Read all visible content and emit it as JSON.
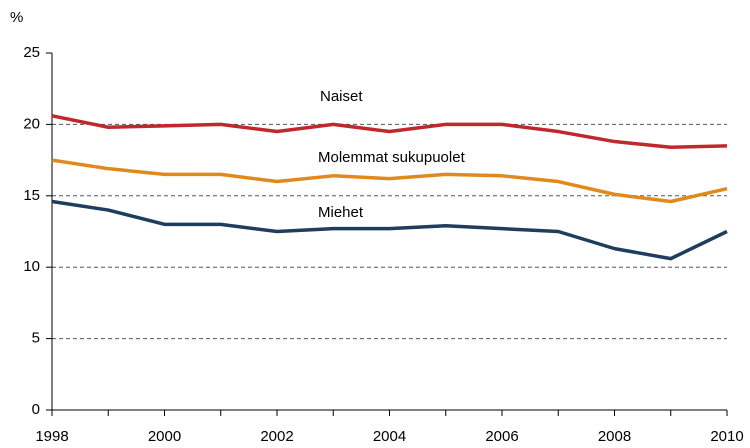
{
  "chart_data": {
    "type": "line",
    "y_label": "%",
    "x": [
      1998,
      1999,
      2000,
      2001,
      2002,
      2003,
      2004,
      2005,
      2006,
      2007,
      2008,
      2009,
      2010
    ],
    "series": [
      {
        "name": "Naiset",
        "color": "#c0282d",
        "values": [
          20.6,
          19.8,
          19.9,
          20.0,
          19.5,
          20.0,
          19.5,
          20.0,
          20.0,
          19.5,
          18.8,
          18.4,
          18.5
        ]
      },
      {
        "name": "Molemmat sukupuolet",
        "color": "#e08a1e",
        "values": [
          17.5,
          16.9,
          16.5,
          16.5,
          16.0,
          16.4,
          16.2,
          16.5,
          16.4,
          16.0,
          15.1,
          14.6,
          15.5
        ]
      },
      {
        "name": "Miehet",
        "color": "#1f3d5c",
        "values": [
          14.6,
          14.0,
          13.0,
          13.0,
          12.5,
          12.7,
          12.7,
          12.9,
          12.7,
          12.5,
          11.3,
          10.6,
          12.5
        ]
      }
    ],
    "xlim": [
      1998,
      2010
    ],
    "xticks": [
      1998,
      2000,
      2002,
      2004,
      2006,
      2008,
      2010
    ],
    "ylim": [
      0,
      25
    ],
    "yticks": [
      0,
      5,
      10,
      15,
      20,
      25
    ],
    "grid": true
  }
}
